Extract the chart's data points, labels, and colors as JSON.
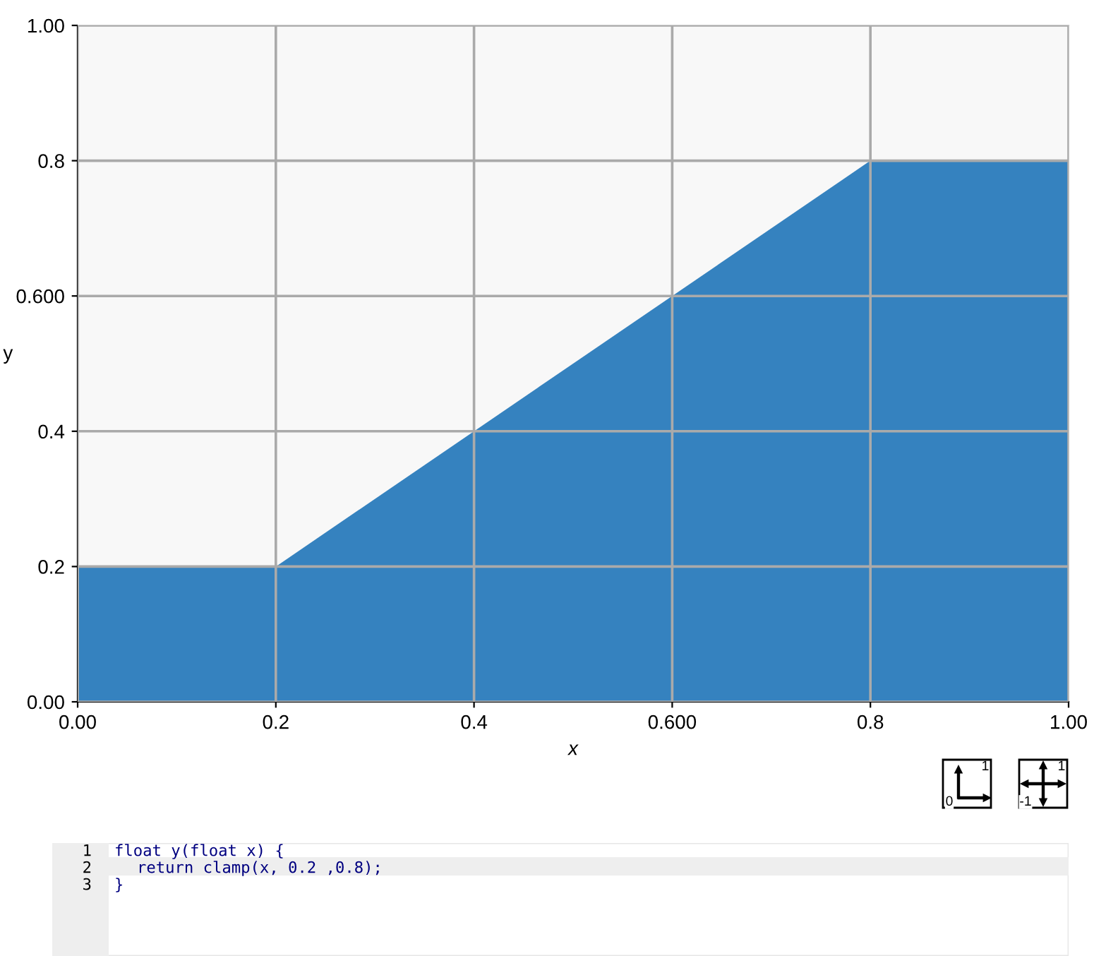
{
  "chart_data": {
    "type": "area",
    "x": [
      0,
      0.2,
      0.8,
      1
    ],
    "series": [
      {
        "color": "#3582bf",
        "values": [
          0.2,
          0.2,
          0.8,
          0.8
        ]
      }
    ],
    "xlim": [
      0,
      1
    ],
    "ylim": [
      0,
      1
    ],
    "xticks": [
      {
        "value": 0,
        "label": "0.00"
      },
      0.2,
      0.4,
      {
        "value": 0.6,
        "label": "0.600"
      },
      0.8,
      {
        "value": 1,
        "label": "1.00"
      }
    ],
    "yticks": [
      {
        "value": 0,
        "label": "0.00"
      },
      0.2,
      0.4,
      {
        "value": 0.6,
        "label": "0.600"
      },
      0.8,
      {
        "value": 1,
        "label": "1.00"
      }
    ],
    "xlabel": "x",
    "ylabel": "y",
    "grid": true,
    "annotations": [
      "1",
      "float y(float x) {",
      "2",
      "return clamp(x, 0.2 ,0.8);",
      "3",
      "}",
      "1",
      "0",
      "1",
      "-1"
    ]
  }
}
